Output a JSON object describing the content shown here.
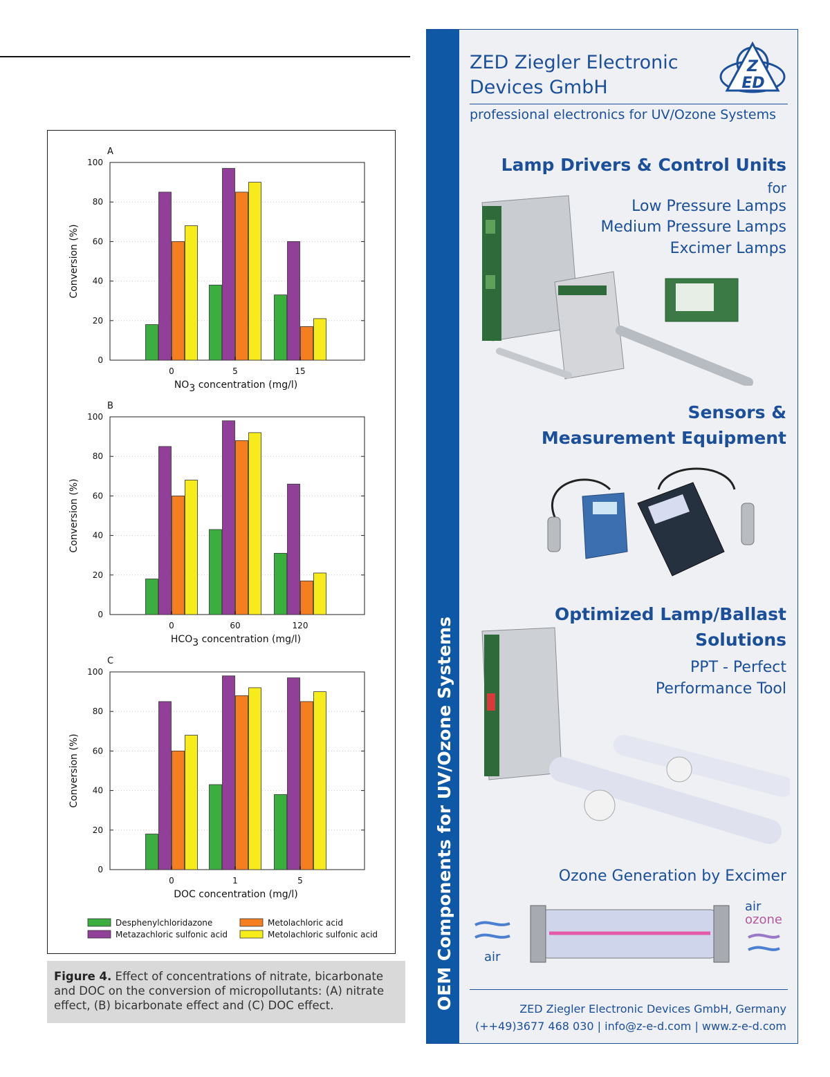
{
  "figure": {
    "caption_label": "Figure 4.",
    "caption_text": " Effect of concentrations of nitrate, bicarbonate and DOC on the conversion of micropollutants: (A) nitrate effect, (B) bicarbonate effect and (C) DOC effect."
  },
  "chart_data": [
    {
      "type": "bar",
      "panel": "A",
      "categories": [
        "0",
        "5",
        "15"
      ],
      "ylabel": "Conversion (%)",
      "xlabel": "NO3 concentration (mg/l)",
      "xlabel_main": "NO",
      "xlabel_sub": "3",
      "xlabel_rest": " concentration (mg/l)",
      "ylim": [
        0,
        100
      ],
      "yticks": [
        "0",
        "20",
        "40",
        "60",
        "80",
        "100"
      ],
      "series": [
        {
          "name": "Desphenylchloridazone",
          "values": [
            18,
            38,
            33
          ]
        },
        {
          "name": "Metazachloric sulfonic acid",
          "values": [
            85,
            97,
            60
          ]
        },
        {
          "name": "Metolachloric acid",
          "values": [
            60,
            85,
            17
          ]
        },
        {
          "name": "Metolachloric sulfonic acid",
          "values": [
            68,
            90,
            21
          ]
        }
      ]
    },
    {
      "type": "bar",
      "panel": "B",
      "categories": [
        "0",
        "60",
        "120"
      ],
      "ylabel": "Conversion (%)",
      "xlabel": "HCO3 concentration (mg/l)",
      "xlabel_main": "HCO",
      "xlabel_sub": "3",
      "xlabel_rest": " concentration (mg/l)",
      "ylim": [
        0,
        100
      ],
      "yticks": [
        "0",
        "20",
        "40",
        "60",
        "80",
        "100"
      ],
      "series": [
        {
          "name": "Desphenylchloridazone",
          "values": [
            18,
            43,
            31
          ]
        },
        {
          "name": "Metazachloric sulfonic acid",
          "values": [
            85,
            98,
            66
          ]
        },
        {
          "name": "Metolachloric acid",
          "values": [
            60,
            88,
            17
          ]
        },
        {
          "name": "Metolachloric sulfonic acid",
          "values": [
            68,
            92,
            21
          ]
        }
      ]
    },
    {
      "type": "bar",
      "panel": "C",
      "categories": [
        "0",
        "1",
        "5"
      ],
      "ylabel": "Conversion (%)",
      "xlabel": "DOC concentration (mg/l)",
      "xlabel_main": "DOC concentration (mg/l)",
      "xlabel_sub": "",
      "xlabel_rest": "",
      "ylim": [
        0,
        100
      ],
      "yticks": [
        "0",
        "20",
        "40",
        "60",
        "80",
        "100"
      ],
      "series": [
        {
          "name": "Desphenylchloridazone",
          "values": [
            18,
            43,
            38
          ]
        },
        {
          "name": "Metazachloric sulfonic acid",
          "values": [
            85,
            98,
            97
          ]
        },
        {
          "name": "Metolachloric acid",
          "values": [
            60,
            88,
            85
          ]
        },
        {
          "name": "Metolachloric sulfonic acid",
          "values": [
            68,
            92,
            90
          ]
        }
      ]
    }
  ],
  "legend": [
    {
      "name": "Desphenylchloridazone",
      "color": "#3aae3f"
    },
    {
      "name": "Metolachloric acid",
      "color": "#f57f20"
    },
    {
      "name": "Metazachloric sulfonic acid",
      "color": "#923f9a"
    },
    {
      "name": "Metolachloric sulfonic acid",
      "color": "#f7ec1b"
    }
  ],
  "series_colors": [
    "#3aae3f",
    "#923f9a",
    "#f57f20",
    "#f7ec1b"
  ],
  "ad": {
    "sidebar_text": "OEM Components for UV/Ozone Systems",
    "company_line1": "ZED Ziegler Electronic",
    "company_line2": "Devices GmbH",
    "logo_letters": [
      "Z",
      "ED"
    ],
    "tagline": "professional electronics for UV/Ozone Systems",
    "section1_title": "Lamp Drivers & Control Units",
    "section1_for": "for",
    "section1_items": [
      "Low Pressure Lamps",
      "Medium Pressure Lamps",
      "Excimer Lamps"
    ],
    "section2_title_line1": "Sensors &",
    "section2_title_line2": "Measurement Equipment",
    "section3_title_line1": "Optimized Lamp/Ballast",
    "section3_title_line2": "Solutions",
    "section3_sub_line1": "PPT - Perfect",
    "section3_sub_line2": "Performance Tool",
    "section4_title": "Ozone Generation by Excimer",
    "air_left": "air",
    "air_right": "air",
    "ozone_right": "ozone",
    "contact_line1": "ZED Ziegler Electronic Devices GmbH, Germany",
    "contact_line2": "(++49)3677 468 030 | info@z-e-d.com | www.z-e-d.com",
    "brand_color": "#1b4f9a"
  }
}
